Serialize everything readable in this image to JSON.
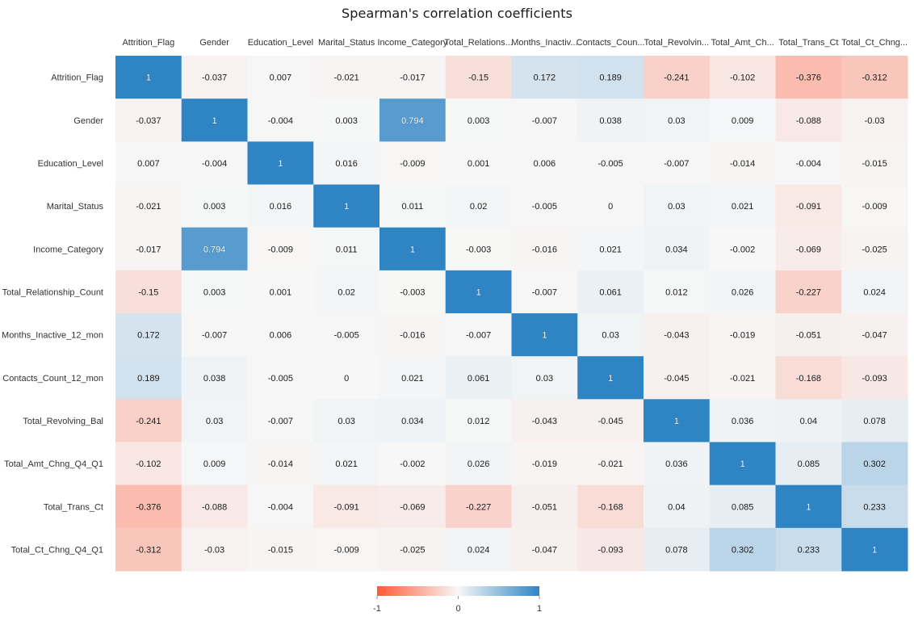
{
  "chart_data": {
    "type": "heatmap",
    "title": "Spearman's correlation coefficients",
    "columns": [
      "Attrition_Flag",
      "Gender",
      "Education_Level",
      "Marital_Status",
      "Income_Category",
      "Total_Relations...",
      "Months_Inactiv...",
      "Contacts_Coun...",
      "Total_Revolvin...",
      "Total_Amt_Ch...",
      "Total_Trans_Ct",
      "Total_Ct_Chng..."
    ],
    "rows": [
      "Attrition_Flag",
      "Gender",
      "Education_Level",
      "Marital_Status",
      "Income_Category",
      "Total_Relationship_Count",
      "Months_Inactive_12_mon",
      "Contacts_Count_12_mon",
      "Total_Revolving_Bal",
      "Total_Amt_Chng_Q4_Q1",
      "Total_Trans_Ct",
      "Total_Ct_Chng_Q4_Q1"
    ],
    "values": [
      [
        1,
        -0.037,
        0.007,
        -0.021,
        -0.017,
        -0.15,
        0.172,
        0.189,
        -0.241,
        -0.102,
        -0.376,
        -0.312
      ],
      [
        -0.037,
        1,
        -0.004,
        0.003,
        0.794,
        0.003,
        -0.007,
        0.038,
        0.03,
        0.009,
        -0.088,
        -0.03
      ],
      [
        0.007,
        -0.004,
        1,
        0.016,
        -0.009,
        0.001,
        0.006,
        -0.005,
        -0.007,
        -0.014,
        -0.004,
        -0.015
      ],
      [
        -0.021,
        0.003,
        0.016,
        1,
        0.011,
        0.02,
        -0.005,
        0,
        0.03,
        0.021,
        -0.091,
        -0.009
      ],
      [
        -0.017,
        0.794,
        -0.009,
        0.011,
        1,
        -0.003,
        -0.016,
        0.021,
        0.034,
        -0.002,
        -0.069,
        -0.025
      ],
      [
        -0.15,
        0.003,
        0.001,
        0.02,
        -0.003,
        1,
        -0.007,
        0.061,
        0.012,
        0.026,
        -0.227,
        0.024
      ],
      [
        0.172,
        -0.007,
        0.006,
        -0.005,
        -0.016,
        -0.007,
        1,
        0.03,
        -0.043,
        -0.019,
        -0.051,
        -0.047
      ],
      [
        0.189,
        0.038,
        -0.005,
        0,
        0.021,
        0.061,
        0.03,
        1,
        -0.045,
        -0.021,
        -0.168,
        -0.093
      ],
      [
        -0.241,
        0.03,
        -0.007,
        0.03,
        0.034,
        0.012,
        -0.043,
        -0.045,
        1,
        0.036,
        0.04,
        0.078
      ],
      [
        -0.102,
        0.009,
        -0.014,
        0.021,
        -0.002,
        0.026,
        -0.019,
        -0.021,
        0.036,
        1,
        0.085,
        0.302
      ],
      [
        -0.376,
        -0.088,
        -0.004,
        -0.091,
        -0.069,
        -0.227,
        -0.051,
        -0.168,
        0.04,
        0.085,
        1,
        0.233
      ],
      [
        -0.312,
        -0.03,
        -0.015,
        -0.009,
        -0.025,
        0.024,
        -0.047,
        -0.093,
        0.078,
        0.302,
        0.233,
        1
      ]
    ],
    "color_scale": {
      "min": -1,
      "mid": 0,
      "max": 1,
      "min_color": "#ff5a36",
      "mid_color": "#f7f7f7",
      "max_color": "#2f85c4"
    },
    "legend": {
      "placement": "bottom-center",
      "ticks": [
        "-1",
        "0",
        "1"
      ]
    }
  }
}
